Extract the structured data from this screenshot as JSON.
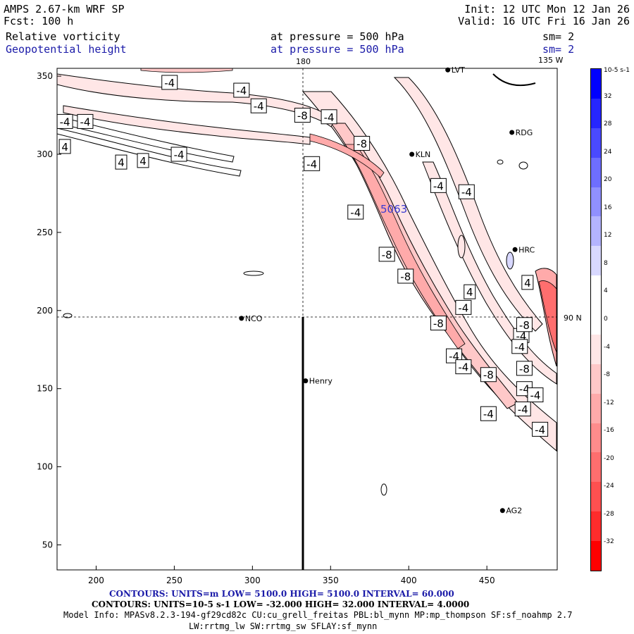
{
  "header": {
    "model": "AMPS 2.67-km WRF SP",
    "forecast": "Fcst:  100 h",
    "init": "Init: 12 UTC Mon 12 Jan 26",
    "valid": "Valid: 16 UTC Fri 16 Jan 26"
  },
  "fields": [
    {
      "name": "Relative vorticity",
      "level": "at pressure =  500 hPa",
      "smooth": "sm= 2"
    },
    {
      "name": "Geopotential height",
      "level": "at pressure =  500 hPa",
      "smooth": "sm= 2"
    }
  ],
  "map": {
    "meridian_top_labels": [
      "180",
      "135 W"
    ],
    "parallel_label": "90 N",
    "x_ticks": [
      "200",
      "250",
      "300",
      "350",
      "400",
      "450"
    ],
    "y_ticks": [
      "350",
      "300",
      "250",
      "200",
      "150",
      "100",
      "50"
    ],
    "height_label": "5063",
    "stations": [
      {
        "name": "LVT",
        "x": 425,
        "y": 354
      },
      {
        "name": "RDG",
        "x": 466,
        "y": 314
      },
      {
        "name": "KLN",
        "x": 402,
        "y": 300
      },
      {
        "name": "HRC",
        "x": 468,
        "y": 239
      },
      {
        "name": "NCO",
        "x": 293,
        "y": 195
      },
      {
        "name": "Henry",
        "x": 334,
        "y": 155
      },
      {
        "name": "AG2",
        "x": 460,
        "y": 72
      }
    ],
    "contour_labels": [
      {
        "text": "-4",
        "x": 247,
        "y": 346
      },
      {
        "text": "-4",
        "x": 293,
        "y": 341
      },
      {
        "text": "-4",
        "x": 304,
        "y": 331
      },
      {
        "text": "-8",
        "x": 332,
        "y": 325
      },
      {
        "text": "-4",
        "x": 349,
        "y": 324
      },
      {
        "text": "-4",
        "x": 180,
        "y": 321
      },
      {
        "text": "-4",
        "x": 193,
        "y": 321
      },
      {
        "text": "4",
        "x": 180,
        "y": 305
      },
      {
        "text": "-4",
        "x": 253,
        "y": 300
      },
      {
        "text": "4",
        "x": 216,
        "y": 295
      },
      {
        "text": "4",
        "x": 230,
        "y": 296
      },
      {
        "text": "-4",
        "x": 338,
        "y": 294
      },
      {
        "text": "-8",
        "x": 370,
        "y": 307
      },
      {
        "text": "-4",
        "x": 419,
        "y": 280
      },
      {
        "text": "-4",
        "x": 437,
        "y": 276
      },
      {
        "text": "-4",
        "x": 366,
        "y": 263
      },
      {
        "text": "-8",
        "x": 386,
        "y": 236
      },
      {
        "text": "-8",
        "x": 398,
        "y": 222
      },
      {
        "text": "4",
        "x": 439,
        "y": 212
      },
      {
        "text": "4",
        "x": 476,
        "y": 218
      },
      {
        "text": "-4",
        "x": 435,
        "y": 202
      },
      {
        "text": "-8",
        "x": 419,
        "y": 192
      },
      {
        "text": "-4",
        "x": 472,
        "y": 184
      },
      {
        "text": "-4",
        "x": 471,
        "y": 177
      },
      {
        "text": "-8",
        "x": 474,
        "y": 191
      },
      {
        "text": "-4",
        "x": 429,
        "y": 171
      },
      {
        "text": "-4",
        "x": 435,
        "y": 164
      },
      {
        "text": "-8",
        "x": 451,
        "y": 159
      },
      {
        "text": "-8",
        "x": 474,
        "y": 163
      },
      {
        "text": "-4",
        "x": 474,
        "y": 150
      },
      {
        "text": "-4",
        "x": 481,
        "y": 146
      },
      {
        "text": "-4",
        "x": 473,
        "y": 137
      },
      {
        "text": "-4",
        "x": 451,
        "y": 134
      },
      {
        "text": "-4",
        "x": 484,
        "y": 124
      }
    ]
  },
  "colorbar": {
    "unit_label": "10-5 s-1",
    "labels": [
      "32",
      "28",
      "24",
      "20",
      "16",
      "12",
      "8",
      "4",
      "0",
      "-4",
      "-8",
      "-12",
      "-16",
      "-20",
      "-24",
      "-28",
      "-32"
    ],
    "colors": [
      "#0000ff",
      "#2626ff",
      "#4a4aff",
      "#6e6eff",
      "#9090ff",
      "#b4b4ff",
      "#d8d8ff",
      "#ffffff",
      "#ffffff",
      "#ffe6e6",
      "#ffc8c8",
      "#ffaaaa",
      "#ff8c8c",
      "#ff6e6e",
      "#ff5050",
      "#ff2c2c",
      "#ff0000"
    ]
  },
  "footer": {
    "contours1": "CONTOURS:  UNITS=m  LOW=  5100.0       HIGH=  5100.0       INTERVAL=   60.000",
    "contours2": "CONTOURS:  UNITS=10-5 s-1  LOW=  -32.000       HIGH=  32.000       INTERVAL=   4.0000",
    "model_info_1": "Model Info: MPASv8.2.3-194-gf29cd82c CU:cu_grell_freitas PBL:bl_mynn MP:mp_thompson SF:sf_noahmp 2.7",
    "model_info_2": "LW:rrtmg_lw SW:rrtmg_sw SFLAY:sf_mynn"
  }
}
